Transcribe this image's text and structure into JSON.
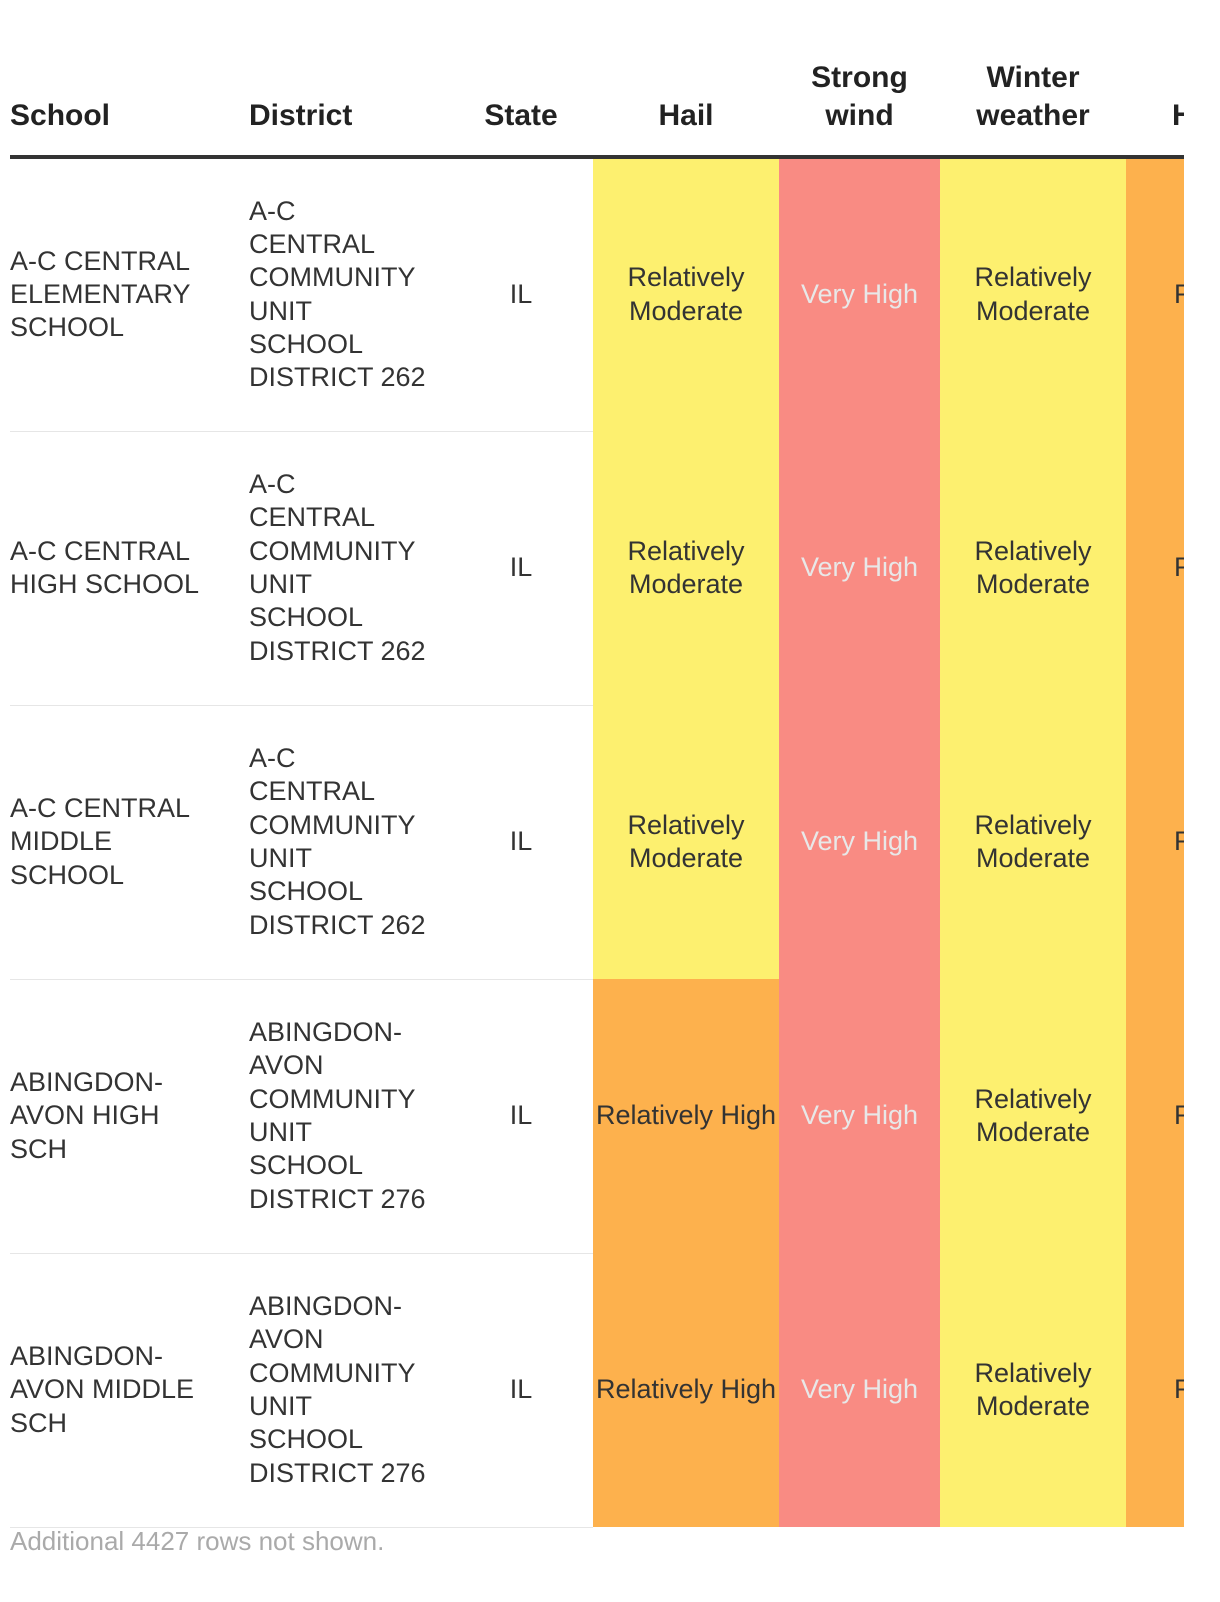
{
  "columns": {
    "school": "School",
    "district": "District",
    "state": "State",
    "hail": "Hail",
    "strong_wind_1": "Strong",
    "strong_wind_2": "wind",
    "winter_weather_1": "Winter",
    "winter_weather_2": "weather",
    "heat_partial": "He"
  },
  "colors": {
    "relatively_moderate": "#fdf06f",
    "relatively_high": "#fdb14d",
    "very_high": "#f98b83"
  },
  "rows": [
    {
      "school": "A-C CENTRAL ELEMENTARY SCHOOL",
      "district": "A-C CENTRAL COMMUNITY UNIT SCHOOL DISTRICT 262",
      "state": "IL",
      "hail": "Relatively Moderate",
      "hail_level": "relatively_moderate",
      "strong_wind": "Very High",
      "strong_wind_level": "very_high",
      "winter_weather": "Relatively Moderate",
      "winter_weather_level": "relatively_moderate",
      "heat_partial": "R",
      "heat_level": "relatively_high"
    },
    {
      "school": "A-C CENTRAL HIGH SCHOOL",
      "district": "A-C CENTRAL COMMUNITY UNIT SCHOOL DISTRICT 262",
      "state": "IL",
      "hail": "Relatively Moderate",
      "hail_level": "relatively_moderate",
      "strong_wind": "Very High",
      "strong_wind_level": "very_high",
      "winter_weather": "Relatively Moderate",
      "winter_weather_level": "relatively_moderate",
      "heat_partial": "R",
      "heat_level": "relatively_high"
    },
    {
      "school": "A-C CENTRAL MIDDLE SCHOOL",
      "district": "A-C CENTRAL COMMUNITY UNIT SCHOOL DISTRICT 262",
      "state": "IL",
      "hail": "Relatively Moderate",
      "hail_level": "relatively_moderate",
      "strong_wind": "Very High",
      "strong_wind_level": "very_high",
      "winter_weather": "Relatively Moderate",
      "winter_weather_level": "relatively_moderate",
      "heat_partial": "R",
      "heat_level": "relatively_high"
    },
    {
      "school": "ABINGDON-AVON HIGH SCH",
      "district": "ABINGDON-AVON COMMUNITY UNIT SCHOOL DISTRICT 276",
      "state": "IL",
      "hail": "Relatively High",
      "hail_level": "relatively_high",
      "strong_wind": "Very High",
      "strong_wind_level": "very_high",
      "winter_weather": "Relatively Moderate",
      "winter_weather_level": "relatively_moderate",
      "heat_partial": "R",
      "heat_level": "relatively_high"
    },
    {
      "school": "ABINGDON-AVON MIDDLE SCH",
      "district": "ABINGDON-AVON COMMUNITY UNIT SCHOOL DISTRICT 276",
      "state": "IL",
      "hail": "Relatively High",
      "hail_level": "relatively_high",
      "strong_wind": "Very High",
      "strong_wind_level": "very_high",
      "winter_weather": "Relatively Moderate",
      "winter_weather_level": "relatively_moderate",
      "heat_partial": "R",
      "heat_level": "relatively_high"
    }
  ],
  "footnote": "Additional 4427 rows not shown."
}
